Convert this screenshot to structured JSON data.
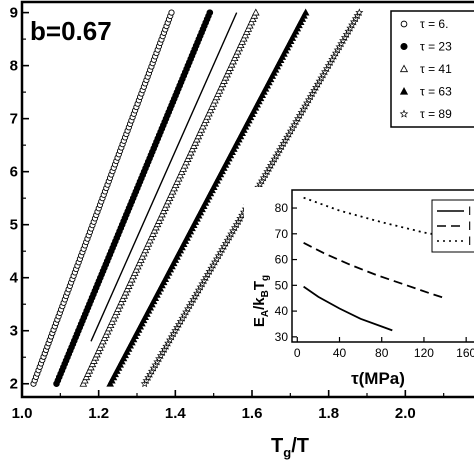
{
  "chart_data": [
    {
      "type": "scatter",
      "annotation": "b=0.67",
      "xlabel_main": "T",
      "xlabel_sub": "g",
      "xlabel_tail": "/T",
      "xlim": [
        1.0,
        2.2
      ],
      "ylim": [
        1.75,
        9.2
      ],
      "x_ticks": [
        1.0,
        1.2,
        1.4,
        1.6,
        1.8,
        2.0
      ],
      "x_tick_labels": [
        "1.0",
        "1.2",
        "1.4",
        "1.6",
        "1.8",
        "2.0"
      ],
      "y_ticks": [
        2,
        3,
        4,
        5,
        6,
        7,
        8,
        9
      ],
      "y_tick_labels": [
        "2",
        "3",
        "4",
        "5",
        "6",
        "7",
        "8",
        "9"
      ],
      "legend_position": "top-right",
      "legend": [
        {
          "label": "τ = 6.",
          "marker": "circle-open"
        },
        {
          "label": "τ = 23",
          "marker": "circle-filled"
        },
        {
          "label": "τ = 41",
          "marker": "triangle-open"
        },
        {
          "label": "τ = 63",
          "marker": "triangle-filled"
        },
        {
          "label": "τ = 89",
          "marker": "star"
        }
      ],
      "series": [
        {
          "marker": "circle-open",
          "x": [
            1.03,
            1.39
          ],
          "y": [
            2,
            9
          ]
        },
        {
          "marker": "circle-filled",
          "x": [
            1.09,
            1.49
          ],
          "y": [
            2,
            9
          ]
        },
        {
          "marker": "triangle-open",
          "x": [
            1.16,
            1.61
          ],
          "y": [
            2,
            9
          ]
        },
        {
          "marker": "triangle-filled",
          "x": [
            1.23,
            1.74
          ],
          "y": [
            2,
            9
          ]
        },
        {
          "marker": "star",
          "x": [
            1.32,
            1.88
          ],
          "y": [
            2,
            9
          ]
        },
        {
          "marker": "line",
          "x": [
            1.18,
            1.56
          ],
          "y": [
            2.8,
            9
          ]
        }
      ]
    },
    {
      "type": "line",
      "xlabel": "τ(MPa)",
      "ylabel_parts": [
        "E",
        "A",
        "/k",
        "B",
        "T",
        "g"
      ],
      "xlim": [
        -5,
        175
      ],
      "ylim": [
        28,
        87
      ],
      "x_ticks": [
        0,
        40,
        80,
        120,
        160
      ],
      "x_tick_labels": [
        "0",
        "40",
        "80",
        "120",
        "160"
      ],
      "y_ticks": [
        30,
        40,
        50,
        60,
        70,
        80
      ],
      "y_tick_labels": [
        "30",
        "40",
        "50",
        "60",
        "70",
        "80"
      ],
      "legend_position": "top-right",
      "legend": [
        {
          "label": "I",
          "style": "solid"
        },
        {
          "label": "I",
          "style": "dashed"
        },
        {
          "label": "I",
          "style": "dotted"
        }
      ],
      "series": [
        {
          "style": "solid",
          "x": [
            6,
            20,
            40,
            60,
            80,
            90
          ],
          "y": [
            49.5,
            45.5,
            41,
            37,
            34,
            32.5
          ]
        },
        {
          "style": "dashed",
          "x": [
            6,
            25,
            50,
            75,
            100,
            125,
            140
          ],
          "y": [
            66.5,
            62.5,
            58,
            54,
            50.5,
            47,
            45
          ]
        },
        {
          "style": "dotted",
          "x": [
            6,
            40,
            80,
            120,
            160,
            175
          ],
          "y": [
            84,
            79,
            74.5,
            70.5,
            67.5,
            66
          ]
        }
      ]
    }
  ]
}
